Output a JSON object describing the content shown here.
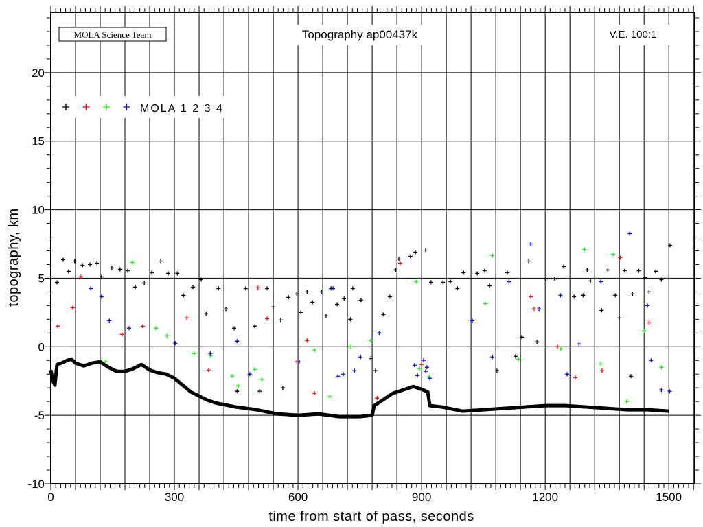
{
  "chart_data": {
    "type": "scatter",
    "title": "Topography ap00437k",
    "credit": "MOLA Science Team",
    "annotation": "V.E. 100:1",
    "xlabel": "time from start of pass, seconds",
    "ylabel": "topography, km",
    "xlim": [
      0,
      1563
    ],
    "ylim": [
      -10,
      24.4
    ],
    "xticks": [
      0,
      300,
      600,
      900,
      1200,
      1500
    ],
    "yticks": [
      -10,
      -5,
      0,
      5,
      10,
      15,
      20
    ],
    "x_grid_step": 60,
    "y_grid_step": 5,
    "grid": true,
    "legend": {
      "position": "top-left",
      "text": "MOLA 1 2 3 4",
      "colors": [
        "#000000",
        "#ff0000",
        "#00ff00",
        "#0000ff"
      ]
    },
    "ground_profile": {
      "color": "#000000",
      "points": [
        [
          0,
          -1.7
        ],
        [
          5,
          -2.5
        ],
        [
          10,
          -2.8
        ],
        [
          15,
          -1.3
        ],
        [
          25,
          -1.2
        ],
        [
          40,
          -1.0
        ],
        [
          50,
          -0.9
        ],
        [
          60,
          -1.2
        ],
        [
          80,
          -1.4
        ],
        [
          100,
          -1.2
        ],
        [
          120,
          -1.1
        ],
        [
          140,
          -1.5
        ],
        [
          160,
          -1.8
        ],
        [
          180,
          -1.8
        ],
        [
          200,
          -1.6
        ],
        [
          220,
          -1.3
        ],
        [
          240,
          -1.7
        ],
        [
          260,
          -1.9
        ],
        [
          280,
          -2.0
        ],
        [
          300,
          -2.3
        ],
        [
          320,
          -2.8
        ],
        [
          340,
          -3.3
        ],
        [
          360,
          -3.6
        ],
        [
          380,
          -3.9
        ],
        [
          400,
          -4.1
        ],
        [
          450,
          -4.4
        ],
        [
          500,
          -4.6
        ],
        [
          550,
          -4.9
        ],
        [
          600,
          -5.0
        ],
        [
          650,
          -4.9
        ],
        [
          700,
          -5.1
        ],
        [
          750,
          -5.1
        ],
        [
          780,
          -5.0
        ],
        [
          785,
          -4.3
        ],
        [
          800,
          -4.0
        ],
        [
          830,
          -3.4
        ],
        [
          860,
          -3.1
        ],
        [
          880,
          -2.9
        ],
        [
          900,
          -3.1
        ],
        [
          915,
          -3.3
        ],
        [
          920,
          -4.3
        ],
        [
          950,
          -4.4
        ],
        [
          1000,
          -4.7
        ],
        [
          1050,
          -4.6
        ],
        [
          1100,
          -4.5
        ],
        [
          1150,
          -4.4
        ],
        [
          1200,
          -4.3
        ],
        [
          1250,
          -4.3
        ],
        [
          1300,
          -4.4
        ],
        [
          1350,
          -4.5
        ],
        [
          1400,
          -4.6
        ],
        [
          1450,
          -4.6
        ],
        [
          1500,
          -4.7
        ]
      ]
    },
    "series": [
      {
        "name": "MOLA 1",
        "color": "#000000",
        "points": [
          [
            15,
            4.7
          ],
          [
            30,
            6.35
          ],
          [
            43,
            5.5
          ],
          [
            58,
            6.25
          ],
          [
            77,
            5.95
          ],
          [
            95,
            6
          ],
          [
            112,
            6.1
          ],
          [
            123,
            5.1
          ],
          [
            148,
            5.75
          ],
          [
            168,
            5.65
          ],
          [
            187,
            5.55
          ],
          [
            205,
            4.35
          ],
          [
            227,
            4.65
          ],
          [
            245,
            5.4
          ],
          [
            267,
            6.25
          ],
          [
            285,
            5.35
          ],
          [
            307,
            5.35
          ],
          [
            322,
            3.75
          ],
          [
            345,
            4.35
          ],
          [
            365,
            4.9
          ],
          [
            377,
            2.4
          ],
          [
            407,
            4.25
          ],
          [
            425,
            2.75
          ],
          [
            445,
            1.35
          ],
          [
            452,
            -3.25
          ],
          [
            473,
            4.25
          ],
          [
            495,
            1.5
          ],
          [
            507,
            -3.25
          ],
          [
            525,
            4.25
          ],
          [
            540,
            2.9
          ],
          [
            558,
            1.95
          ],
          [
            563,
            -3
          ],
          [
            577,
            3.6
          ],
          [
            597,
            3.85
          ],
          [
            607,
            2.5
          ],
          [
            622,
            4
          ],
          [
            635,
            3.25
          ],
          [
            657,
            4
          ],
          [
            668,
            2.25
          ],
          [
            680,
            4.25
          ],
          [
            695,
            3.1
          ],
          [
            712,
            3.5
          ],
          [
            727,
            2
          ],
          [
            733,
            4.25
          ],
          [
            753,
            3.4
          ],
          [
            777,
            -0.85
          ],
          [
            788,
            -1.75
          ],
          [
            807,
            2.35
          ],
          [
            823,
            3.65
          ],
          [
            837,
            5.6
          ],
          [
            845,
            6.4
          ],
          [
            873,
            6.6
          ],
          [
            885,
            6.9
          ],
          [
            910,
            7.05
          ],
          [
            923,
            4.7
          ],
          [
            952,
            4.7
          ],
          [
            970,
            4.75
          ],
          [
            987,
            4.25
          ],
          [
            1002,
            5.4
          ],
          [
            1035,
            5.35
          ],
          [
            1053,
            5.55
          ],
          [
            1065,
            4.45
          ],
          [
            1083,
            -1.75
          ],
          [
            1108,
            5.4
          ],
          [
            1128,
            -0.7
          ],
          [
            1143,
            0.7
          ],
          [
            1160,
            6.25
          ],
          [
            1180,
            0.35
          ],
          [
            1202,
            4.95
          ],
          [
            1223,
            4.95
          ],
          [
            1245,
            5.85
          ],
          [
            1270,
            3.65
          ],
          [
            1292,
            3.75
          ],
          [
            1302,
            5.6
          ],
          [
            1310,
            4.8
          ],
          [
            1337,
            2.65
          ],
          [
            1352,
            5.6
          ],
          [
            1370,
            3.75
          ],
          [
            1380,
            2.1
          ],
          [
            1393,
            5.55
          ],
          [
            1408,
            -2.15
          ],
          [
            1412,
            3.85
          ],
          [
            1427,
            5.55
          ],
          [
            1442,
            5.05
          ],
          [
            1452,
            4
          ],
          [
            1468,
            5.5
          ],
          [
            1482,
            4.9
          ],
          [
            1503,
            7.4
          ]
        ]
      },
      {
        "name": "MOLA 2",
        "color": "#ff0000",
        "points": [
          [
            17,
            1.5
          ],
          [
            53,
            2.85
          ],
          [
            73,
            5.1
          ],
          [
            173,
            0.9
          ],
          [
            223,
            1.5
          ],
          [
            330,
            2.1
          ],
          [
            383,
            -1.7
          ],
          [
            503,
            4.3
          ],
          [
            525,
            2.05
          ],
          [
            597,
            -1.1
          ],
          [
            622,
            0.45
          ],
          [
            640,
            -3.4
          ],
          [
            792,
            -3.75
          ],
          [
            848,
            6.1
          ],
          [
            900,
            -1.3
          ],
          [
            1165,
            3.65
          ],
          [
            1173,
            2.75
          ],
          [
            1230,
            0
          ],
          [
            1273,
            -2.25
          ],
          [
            1338,
            -1.75
          ],
          [
            1382,
            6.5
          ],
          [
            1452,
            1.75
          ]
        ]
      },
      {
        "name": "MOLA 3",
        "color": "#00ff00",
        "points": [
          [
            133,
            -1.1
          ],
          [
            198,
            6.15
          ],
          [
            255,
            1.35
          ],
          [
            282,
            0.8
          ],
          [
            348,
            -0.5
          ],
          [
            388,
            -0.65
          ],
          [
            440,
            -2.15
          ],
          [
            455,
            -2.85
          ],
          [
            495,
            -1.65
          ],
          [
            512,
            -2.4
          ],
          [
            640,
            -0.25
          ],
          [
            677,
            -3.65
          ],
          [
            728,
            0
          ],
          [
            777,
            0.45
          ],
          [
            887,
            4.75
          ],
          [
            895,
            -1.6
          ],
          [
            918,
            -2.2
          ],
          [
            1055,
            3.15
          ],
          [
            1072,
            6.65
          ],
          [
            1135,
            -0.9
          ],
          [
            1238,
            -0.15
          ],
          [
            1295,
            7.1
          ],
          [
            1335,
            -1.25
          ],
          [
            1365,
            6.75
          ],
          [
            1398,
            -4
          ],
          [
            1440,
            1.15
          ],
          [
            1482,
            -1.5
          ]
        ]
      },
      {
        "name": "MOLA 4",
        "color": "#0000ff",
        "points": [
          [
            97,
            4.25
          ],
          [
            123,
            3.65
          ],
          [
            142,
            1.9
          ],
          [
            190,
            1.35
          ],
          [
            302,
            0.25
          ],
          [
            387,
            -0.5
          ],
          [
            452,
            0.4
          ],
          [
            483,
            -2
          ],
          [
            603,
            -1.1
          ],
          [
            685,
            4.25
          ],
          [
            697,
            -2.15
          ],
          [
            710,
            -2
          ],
          [
            737,
            -1.75
          ],
          [
            752,
            -0.75
          ],
          [
            797,
            1
          ],
          [
            883,
            -1.35
          ],
          [
            890,
            -2.1
          ],
          [
            905,
            -1
          ],
          [
            910,
            -1.8
          ],
          [
            913,
            -1.5
          ],
          [
            920,
            -2.3
          ],
          [
            1023,
            1.9
          ],
          [
            1072,
            -0.75
          ],
          [
            1112,
            4.75
          ],
          [
            1165,
            7.5
          ],
          [
            1185,
            2.75
          ],
          [
            1237,
            3.75
          ],
          [
            1253,
            -2
          ],
          [
            1282,
            0.2
          ],
          [
            1335,
            4.75
          ],
          [
            1405,
            8.25
          ],
          [
            1448,
            3
          ],
          [
            1457,
            -1
          ],
          [
            1482,
            -3.15
          ],
          [
            1502,
            -3.25
          ]
        ]
      }
    ]
  }
}
